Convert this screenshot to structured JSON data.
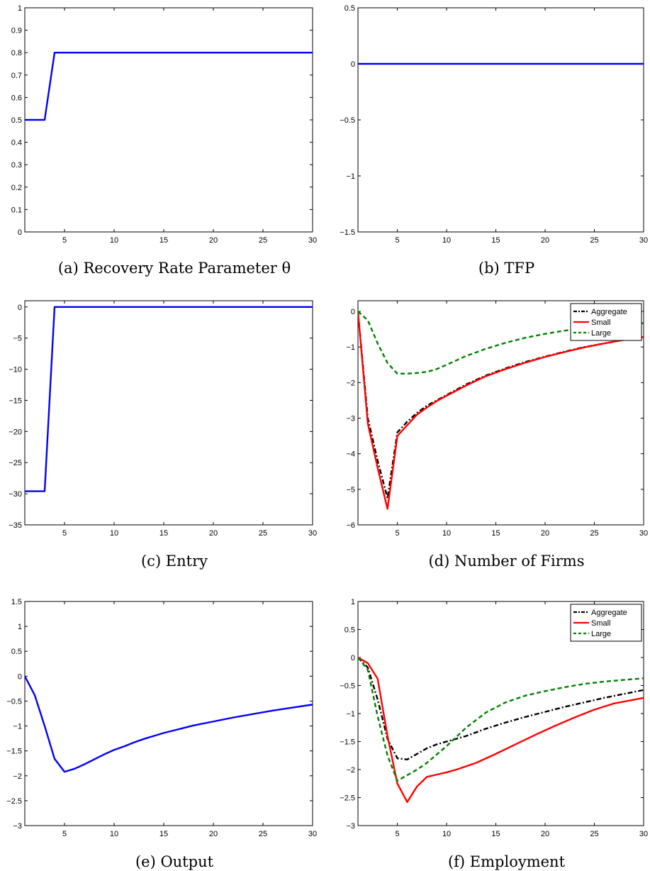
{
  "chart_data": [
    {
      "type": "line",
      "caption": "(a) Recovery Rate Parameter θ",
      "xlim": [
        1,
        30
      ],
      "ylim": [
        0,
        1
      ],
      "xticks": [
        5,
        10,
        15,
        20,
        25,
        30
      ],
      "xtick_labels": [
        "5",
        "10",
        "15",
        "20",
        "25",
        "30"
      ],
      "yticks": [
        0,
        0.1,
        0.2,
        0.3,
        0.4,
        0.5,
        0.6,
        0.7,
        0.8,
        0.9,
        1
      ],
      "ytick_labels": [
        "0",
        "0.1",
        "0.2",
        "0.3",
        "0.4",
        "0.5",
        "0.6",
        "0.7",
        "0.8",
        "0.9",
        "1"
      ],
      "grid": false,
      "legend": null,
      "series": [
        {
          "color": "#0000ff",
          "dash": "solid",
          "x": [
            1,
            3,
            4,
            30
          ],
          "y": [
            0.5,
            0.5,
            0.8,
            0.8
          ]
        }
      ]
    },
    {
      "type": "line",
      "caption": "(b) TFP",
      "xlim": [
        1,
        30
      ],
      "ylim": [
        -1.5,
        0.5
      ],
      "xticks": [
        5,
        10,
        15,
        20,
        25,
        30
      ],
      "xtick_labels": [
        "5",
        "10",
        "15",
        "20",
        "25",
        "30"
      ],
      "yticks": [
        -1.5,
        -1,
        -0.5,
        0,
        0.5
      ],
      "ytick_labels": [
        "−1.5",
        "−1",
        "−0.5",
        "0",
        "0.5"
      ],
      "grid": false,
      "legend": null,
      "series": [
        {
          "color": "#0000ff",
          "dash": "solid",
          "x": [
            1,
            30
          ],
          "y": [
            0,
            0
          ]
        }
      ]
    },
    {
      "type": "line",
      "caption": "(c) Entry",
      "xlim": [
        1,
        30
      ],
      "ylim": [
        -35,
        1
      ],
      "xticks": [
        5,
        10,
        15,
        20,
        25,
        30
      ],
      "xtick_labels": [
        "5",
        "10",
        "15",
        "20",
        "25",
        "30"
      ],
      "yticks": [
        -35,
        -30,
        -25,
        -20,
        -15,
        -10,
        -5,
        0
      ],
      "ytick_labels": [
        "−35",
        "−30",
        "−25",
        "−20",
        "−15",
        "−10",
        "−5",
        "0"
      ],
      "grid": false,
      "legend": null,
      "series": [
        {
          "color": "#0000ff",
          "dash": "solid",
          "x": [
            1,
            3,
            4,
            30
          ],
          "y": [
            -29.6,
            -29.6,
            0,
            0
          ]
        }
      ]
    },
    {
      "type": "line",
      "caption": "(d) Number of Firms",
      "xlim": [
        1,
        30
      ],
      "ylim": [
        -6,
        0.3
      ],
      "xticks": [
        5,
        10,
        15,
        20,
        25,
        30
      ],
      "xtick_labels": [
        "5",
        "10",
        "15",
        "20",
        "25",
        "30"
      ],
      "yticks": [
        -6,
        -5,
        -4,
        -3,
        -2,
        -1,
        0
      ],
      "ytick_labels": [
        "−6",
        "−5",
        "−4",
        "−3",
        "−2",
        "−1",
        "0"
      ],
      "grid": false,
      "legend": "top-right",
      "series": [
        {
          "name": "Aggregate",
          "color": "#000000",
          "dash": "dashdot",
          "x": [
            1,
            2,
            3,
            4,
            5,
            6,
            7,
            8,
            9,
            10,
            12,
            14,
            16,
            18,
            20,
            22,
            24,
            26,
            28,
            30
          ],
          "y": [
            0,
            -3.0,
            -4.2,
            -5.25,
            -3.4,
            -3.1,
            -2.85,
            -2.65,
            -2.5,
            -2.35,
            -2.05,
            -1.8,
            -1.6,
            -1.42,
            -1.27,
            -1.13,
            -1.0,
            -0.9,
            -0.8,
            -0.72
          ]
        },
        {
          "name": "Small",
          "color": "#ff0000",
          "dash": "solid",
          "x": [
            1,
            2,
            3,
            4,
            5,
            6,
            7,
            8,
            9,
            10,
            12,
            14,
            16,
            18,
            20,
            22,
            24,
            26,
            28,
            30
          ],
          "y": [
            0,
            -3.15,
            -4.4,
            -5.55,
            -3.5,
            -3.2,
            -2.9,
            -2.7,
            -2.52,
            -2.37,
            -2.08,
            -1.82,
            -1.62,
            -1.44,
            -1.28,
            -1.14,
            -1.01,
            -0.9,
            -0.8,
            -0.72
          ]
        },
        {
          "name": "Large",
          "color": "#008000",
          "dash": "dashed",
          "x": [
            1,
            2,
            3,
            4,
            5,
            6,
            7,
            8,
            9,
            10,
            12,
            14,
            16,
            18,
            20,
            22,
            24,
            26,
            28,
            30
          ],
          "y": [
            0,
            -0.25,
            -0.9,
            -1.45,
            -1.75,
            -1.75,
            -1.73,
            -1.7,
            -1.62,
            -1.5,
            -1.25,
            -1.05,
            -0.88,
            -0.74,
            -0.63,
            -0.54,
            -0.47,
            -0.41,
            -0.37,
            -0.33
          ]
        }
      ]
    },
    {
      "type": "line",
      "caption": "(e) Output",
      "xlim": [
        1,
        30
      ],
      "ylim": [
        -3,
        1.5
      ],
      "xticks": [
        5,
        10,
        15,
        20,
        25,
        30
      ],
      "xtick_labels": [
        "5",
        "10",
        "15",
        "20",
        "25",
        "30"
      ],
      "yticks": [
        -3,
        -2.5,
        -2,
        -1.5,
        -1,
        -0.5,
        0,
        0.5,
        1,
        1.5
      ],
      "ytick_labels": [
        "−3",
        "−2.5",
        "−2",
        "−1.5",
        "−1",
        "−0.5",
        "0",
        "0.5",
        "1",
        "1.5"
      ],
      "grid": false,
      "legend": null,
      "series": [
        {
          "color": "#0000ff",
          "dash": "solid",
          "x": [
            1,
            2,
            3,
            4,
            5,
            6,
            7,
            8,
            9,
            10,
            11,
            12,
            13,
            14,
            15,
            16,
            18,
            20,
            22,
            24,
            26,
            28,
            30
          ],
          "y": [
            0,
            -0.38,
            -1.0,
            -1.66,
            -1.92,
            -1.86,
            -1.77,
            -1.67,
            -1.57,
            -1.48,
            -1.41,
            -1.33,
            -1.26,
            -1.2,
            -1.14,
            -1.09,
            -0.99,
            -0.91,
            -0.83,
            -0.76,
            -0.69,
            -0.63,
            -0.57
          ]
        }
      ]
    },
    {
      "type": "line",
      "caption": "(f) Employment",
      "xlim": [
        1,
        30
      ],
      "ylim": [
        -3,
        1
      ],
      "xticks": [
        5,
        10,
        15,
        20,
        25,
        30
      ],
      "xtick_labels": [
        "5",
        "10",
        "15",
        "20",
        "25",
        "30"
      ],
      "yticks": [
        -3,
        -2.5,
        -2,
        -1.5,
        -1,
        -0.5,
        0,
        0.5,
        1
      ],
      "ytick_labels": [
        "−3",
        "−2.5",
        "−2",
        "−1.5",
        "−1",
        "−0.5",
        "0",
        "0.5",
        "1"
      ],
      "grid": false,
      "legend": "top-right",
      "series": [
        {
          "name": "Aggregate",
          "color": "#000000",
          "dash": "dashdot",
          "x": [
            1,
            2,
            3,
            4,
            5,
            6,
            7,
            8,
            9,
            10,
            12,
            14,
            16,
            18,
            20,
            22,
            24,
            26,
            28,
            30
          ],
          "y": [
            0,
            -0.18,
            -0.75,
            -1.45,
            -1.8,
            -1.82,
            -1.72,
            -1.62,
            -1.55,
            -1.5,
            -1.4,
            -1.27,
            -1.16,
            -1.06,
            -0.97,
            -0.88,
            -0.8,
            -0.72,
            -0.65,
            -0.58
          ]
        },
        {
          "name": "Small",
          "color": "#ff0000",
          "dash": "solid",
          "x": [
            1,
            2,
            3,
            4,
            5,
            6,
            7,
            8,
            9,
            10,
            11,
            13,
            15,
            17,
            19,
            21,
            23,
            25,
            27,
            30
          ],
          "y": [
            0,
            -0.1,
            -0.38,
            -1.4,
            -2.25,
            -2.58,
            -2.3,
            -2.13,
            -2.09,
            -2.05,
            -2.0,
            -1.88,
            -1.72,
            -1.55,
            -1.38,
            -1.22,
            -1.07,
            -0.93,
            -0.82,
            -0.72
          ]
        },
        {
          "name": "Large",
          "color": "#008000",
          "dash": "dashed",
          "x": [
            1,
            2,
            3,
            4,
            5,
            6,
            7,
            8,
            9,
            10,
            12,
            14,
            16,
            18,
            20,
            22,
            24,
            26,
            28,
            30
          ],
          "y": [
            0,
            -0.22,
            -1.05,
            -1.75,
            -2.2,
            -2.1,
            -2.0,
            -1.88,
            -1.73,
            -1.58,
            -1.25,
            -0.98,
            -0.8,
            -0.68,
            -0.6,
            -0.53,
            -0.47,
            -0.43,
            -0.4,
            -0.37
          ]
        }
      ]
    }
  ]
}
